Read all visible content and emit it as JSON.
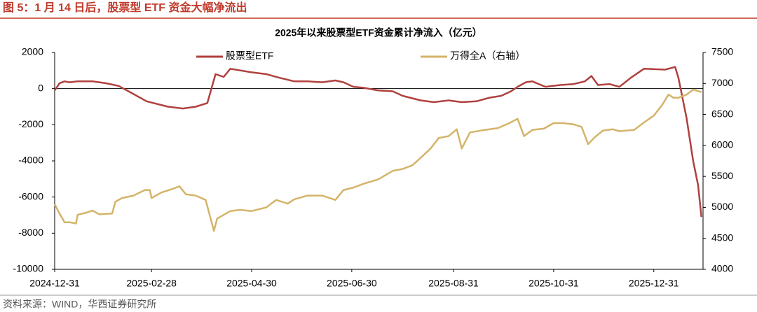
{
  "header": {
    "caption": "图 5：1 月 14 日后，股票型 ETF 资金大幅净流出"
  },
  "footer": {
    "source": "资料来源：WIND，华西证券研究所"
  },
  "chart_data": {
    "type": "line",
    "title": "2025年以来股票型ETF资金累计净流入（亿元）",
    "xlim": [
      "2024-12-31",
      "2026-01-30"
    ],
    "xticks": [
      "2024-12-31",
      "2025-02-28",
      "2025-04-30",
      "2025-06-30",
      "2025-08-31",
      "2025-10-31",
      "2025-12-31"
    ],
    "ylim": [
      -10000,
      2000
    ],
    "yticks": [
      2000,
      0,
      -2000,
      -4000,
      -6000,
      -8000,
      -10000
    ],
    "y2lim": [
      4000,
      7500
    ],
    "y2ticks": [
      7500,
      7000,
      6500,
      6000,
      5500,
      5000,
      4500,
      4000
    ],
    "grid": false,
    "legend": "top",
    "series": [
      {
        "name": "股票型ETF",
        "color": "#b0413e",
        "axis": "y",
        "x": [
          "2024-12-31",
          "2025-01-03",
          "2025-01-06",
          "2025-01-09",
          "2025-01-14",
          "2025-01-23",
          "2025-01-31",
          "2025-02-08",
          "2025-02-17",
          "2025-02-25",
          "2025-03-10",
          "2025-03-19",
          "2025-03-27",
          "2025-04-03",
          "2025-04-08",
          "2025-04-13",
          "2025-04-17",
          "2025-04-30",
          "2025-05-09",
          "2025-05-17",
          "2025-05-26",
          "2025-06-03",
          "2025-06-12",
          "2025-06-20",
          "2025-06-25",
          "2025-07-01",
          "2025-07-07",
          "2025-07-16",
          "2025-07-25",
          "2025-07-31",
          "2025-08-11",
          "2025-08-19",
          "2025-08-28",
          "2025-09-05",
          "2025-09-14",
          "2025-09-22",
          "2025-09-29",
          "2025-10-05",
          "2025-10-09",
          "2025-10-14",
          "2025-10-18",
          "2025-10-26",
          "2025-11-04",
          "2025-11-12",
          "2025-11-19",
          "2025-11-23",
          "2025-11-27",
          "2025-12-04",
          "2025-12-10",
          "2025-12-17",
          "2025-12-25",
          "2026-01-07",
          "2026-01-13",
          "2026-01-15",
          "2026-01-20",
          "2026-01-24",
          "2026-01-27",
          "2026-01-29"
        ],
        "values": [
          -100,
          300,
          400,
          350,
          400,
          400,
          300,
          150,
          -300,
          -700,
          -1000,
          -1100,
          -1000,
          -800,
          800,
          650,
          1100,
          900,
          800,
          600,
          400,
          400,
          350,
          450,
          350,
          100,
          50,
          -100,
          -150,
          -400,
          -650,
          -750,
          -650,
          -750,
          -700,
          -500,
          -400,
          -150,
          100,
          350,
          400,
          100,
          200,
          250,
          400,
          700,
          200,
          250,
          100,
          600,
          1100,
          1050,
          1200,
          600,
          -1650,
          -4000,
          -5350,
          -7100
        ]
      },
      {
        "name": "万得全A（右轴）",
        "color": "#d4b46a",
        "axis": "y2",
        "x": [
          "2024-12-31",
          "2025-01-03",
          "2025-01-06",
          "2025-01-09",
          "2025-01-13",
          "2025-01-14",
          "2025-01-20",
          "2025-01-23",
          "2025-01-27",
          "2025-02-04",
          "2025-02-06",
          "2025-02-10",
          "2025-02-17",
          "2025-02-24",
          "2025-02-27",
          "2025-02-28",
          "2025-03-06",
          "2025-03-13",
          "2025-03-17",
          "2025-03-21",
          "2025-03-27",
          "2025-04-02",
          "2025-04-07",
          "2025-04-09",
          "2025-04-17",
          "2025-04-23",
          "2025-04-30",
          "2025-05-09",
          "2025-05-15",
          "2025-05-22",
          "2025-05-26",
          "2025-06-03",
          "2025-06-12",
          "2025-06-20",
          "2025-06-25",
          "2025-07-01",
          "2025-07-07",
          "2025-07-16",
          "2025-07-25",
          "2025-07-31",
          "2025-08-06",
          "2025-08-11",
          "2025-08-17",
          "2025-08-22",
          "2025-08-28",
          "2025-09-02",
          "2025-09-05",
          "2025-09-10",
          "2025-09-19",
          "2025-09-27",
          "2025-10-04",
          "2025-10-09",
          "2025-10-13",
          "2025-10-18",
          "2025-10-25",
          "2025-10-31",
          "2025-11-06",
          "2025-11-12",
          "2025-11-17",
          "2025-11-21",
          "2025-11-25",
          "2025-11-30",
          "2025-12-06",
          "2025-12-10",
          "2025-12-19",
          "2025-12-25",
          "2025-12-31",
          "2026-01-05",
          "2026-01-09",
          "2026-01-12",
          "2026-01-15",
          "2026-01-20",
          "2026-01-24",
          "2026-01-29"
        ],
        "values": [
          5050,
          4900,
          4760,
          4760,
          4740,
          4880,
          4920,
          4950,
          4890,
          4900,
          5090,
          5150,
          5190,
          5280,
          5280,
          5150,
          5240,
          5300,
          5340,
          5210,
          5190,
          5120,
          4620,
          4820,
          4940,
          4960,
          4940,
          5000,
          5120,
          5060,
          5130,
          5190,
          5190,
          5120,
          5280,
          5320,
          5380,
          5450,
          5590,
          5620,
          5680,
          5800,
          5950,
          6120,
          6150,
          6260,
          5950,
          6210,
          6250,
          6280,
          6360,
          6430,
          6150,
          6250,
          6270,
          6360,
          6360,
          6340,
          6300,
          6020,
          6130,
          6240,
          6260,
          6230,
          6250,
          6370,
          6480,
          6650,
          6820,
          6770,
          6770,
          6820,
          6900,
          6860
        ]
      }
    ]
  }
}
